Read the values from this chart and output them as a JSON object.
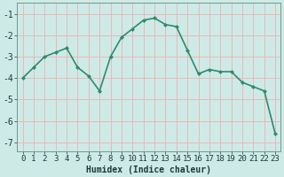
{
  "x": [
    0,
    1,
    2,
    3,
    4,
    5,
    6,
    7,
    8,
    9,
    10,
    11,
    12,
    13,
    14,
    15,
    16,
    17,
    18,
    19,
    20,
    21,
    22,
    23
  ],
  "y": [
    -4.0,
    -3.5,
    -3.0,
    -2.8,
    -2.6,
    -3.5,
    -3.9,
    -4.6,
    -3.0,
    -2.1,
    -1.7,
    -1.3,
    -1.2,
    -1.5,
    -1.6,
    -2.7,
    -3.8,
    -3.6,
    -3.7,
    -3.7,
    -4.2,
    -4.4,
    -4.6,
    -6.6
  ],
  "line_color": "#2e8b6e",
  "marker": "D",
  "marker_size": 2.0,
  "bg_color": "#ceeae6",
  "grid_color": "#e8b8b8",
  "xlabel": "Humidex (Indice chaleur)",
  "xlim": [
    -0.5,
    23.5
  ],
  "ylim": [
    -7.4,
    -0.5
  ],
  "yticks": [
    -7,
    -6,
    -5,
    -4,
    -3,
    -2,
    -1
  ],
  "xticks": [
    0,
    1,
    2,
    3,
    4,
    5,
    6,
    7,
    8,
    9,
    10,
    11,
    12,
    13,
    14,
    15,
    16,
    17,
    18,
    19,
    20,
    21,
    22,
    23
  ],
  "xlabel_fontsize": 7,
  "tick_fontsize": 6.5,
  "linewidth": 1.2,
  "font_color": "#1a3a3a"
}
